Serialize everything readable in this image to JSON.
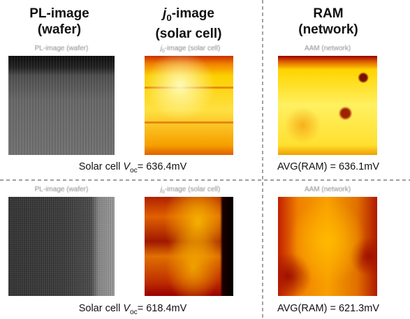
{
  "headers": [
    {
      "line1": "PL-image",
      "line2": "(wafer)"
    },
    {
      "italic": "j",
      "sub": "0",
      "line1": "-image",
      "line2": "(solar cell)"
    },
    {
      "line1": "RAM",
      "line2": "(network)"
    }
  ],
  "rows": [
    {
      "image_labels": [
        {
          "text": "PL-image (wafer)"
        },
        {
          "italic": "j",
          "sub": "0",
          "text": "-image (solar cell)"
        },
        {
          "text": "AAM (network)"
        }
      ],
      "cell_caption": {
        "text": "Solar cell ",
        "var": "V",
        "sub": "oc",
        "value": "= 636.4mV"
      },
      "ram_caption": "AVG(RAM) = 636.1mV"
    },
    {
      "image_labels": [
        {
          "text": "PL-image (wafer)"
        },
        {
          "italic": "j",
          "sub": "0",
          "text": "-image (solar cell)"
        },
        {
          "text": "AAM (network)"
        }
      ],
      "cell_caption": {
        "text": "Solar cell ",
        "var": "V",
        "sub": "oc",
        "value": "= 618.4mV"
      },
      "ram_caption": "AVG(RAM) = 621.3mV"
    }
  ]
}
